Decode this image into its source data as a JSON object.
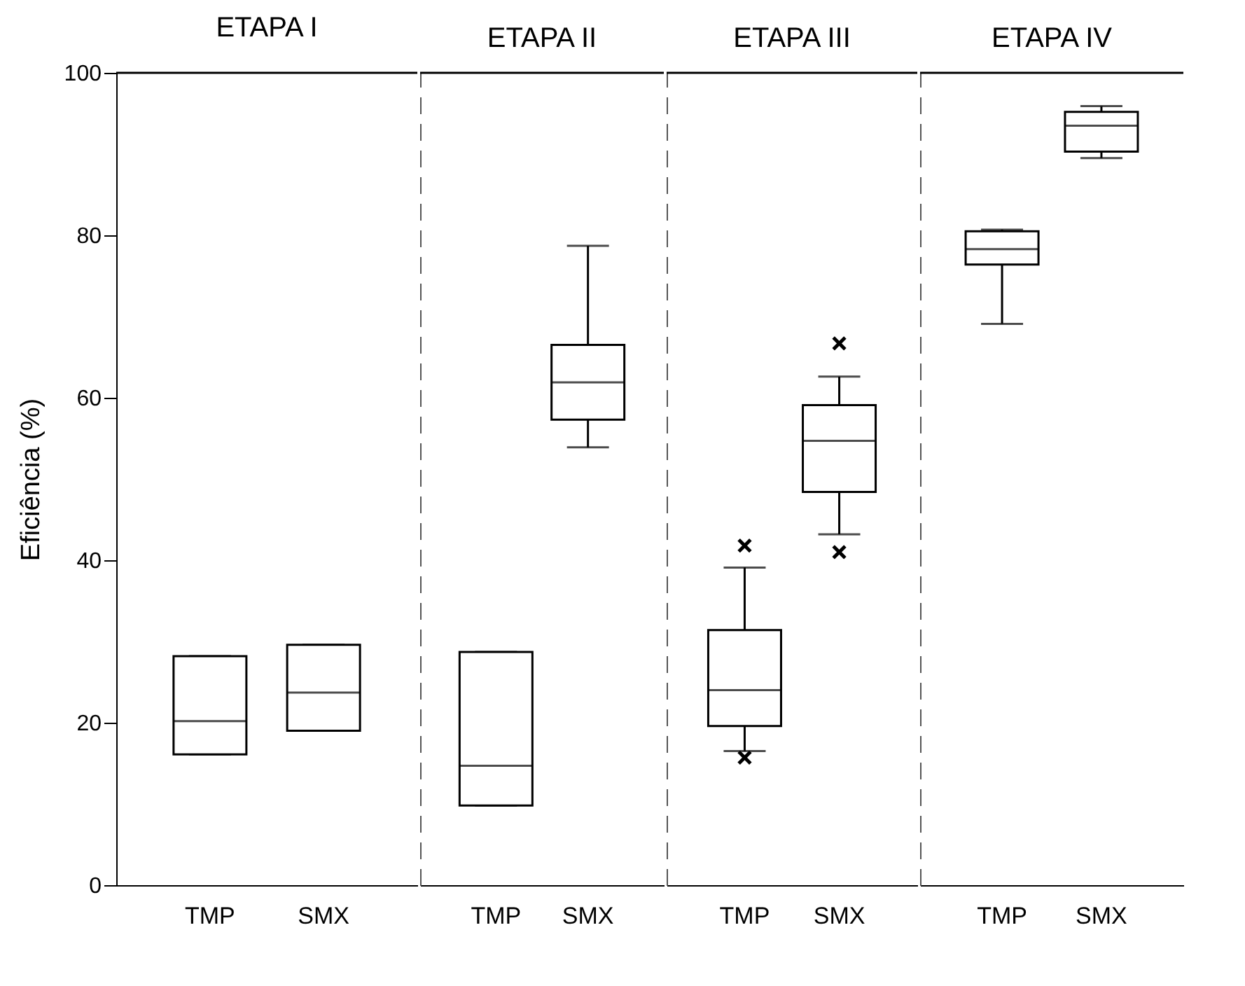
{
  "chart_data": [
    {
      "type": "box",
      "title": "ETAPA I",
      "ylabel": "Eficiência (%)",
      "categories": [
        "TMP",
        "SMX"
      ],
      "ylim": [
        0,
        100
      ],
      "yticks": [
        0,
        20,
        40,
        60,
        80,
        100
      ],
      "boxes": [
        {
          "low": 16.1,
          "q1": 16.1,
          "median": 20.2,
          "q3": 28.2,
          "high": 28.2
        },
        {
          "low": 19.0,
          "q1": 19.0,
          "median": 23.7,
          "q3": 29.6,
          "high": 29.6
        }
      ]
    },
    {
      "type": "box",
      "title": "ETAPA II",
      "categories": [
        "TMP",
        "SMX"
      ],
      "ylim": [
        0,
        100
      ],
      "yticks": [
        0,
        20,
        40,
        60,
        80,
        100
      ],
      "tick_labels": "x",
      "boxes": [
        {
          "low": 9.8,
          "q1": 9.8,
          "median": 14.7,
          "q3": 28.7,
          "high": 28.7
        },
        {
          "low": 53.9,
          "q1": 57.3,
          "median": 61.9,
          "q3": 66.5,
          "high": 78.7
        }
      ]
    },
    {
      "type": "box",
      "title": "ETAPA III",
      "categories": [
        "TMP",
        "SMX"
      ],
      "ylim": [
        0,
        100
      ],
      "yticks": [
        0,
        20,
        40,
        60,
        80,
        100
      ],
      "tick_labels": "x",
      "boxes": [
        {
          "low": 16.5,
          "q1": 19.6,
          "median": 24.0,
          "q3": 31.4,
          "high": 39.1,
          "outliers": [
            41.8,
            15.7
          ]
        },
        {
          "low": 43.2,
          "q1": 48.4,
          "median": 54.7,
          "q3": 59.1,
          "high": 62.6,
          "outliers": [
            66.7,
            41.0
          ]
        }
      ]
    },
    {
      "type": "box",
      "title": "ETAPA IV",
      "categories": [
        "TMP",
        "SMX"
      ],
      "ylim": [
        0,
        100
      ],
      "yticks": [
        0,
        20,
        40,
        60,
        80,
        100
      ],
      "tick_labels": "x",
      "boxes": [
        {
          "low": 69.1,
          "q1": 76.4,
          "median": 78.3,
          "q3": 80.5,
          "high": 80.7
        },
        {
          "low": 89.5,
          "q1": 90.3,
          "median": 93.5,
          "q3": 95.2,
          "high": 95.9
        }
      ]
    }
  ]
}
